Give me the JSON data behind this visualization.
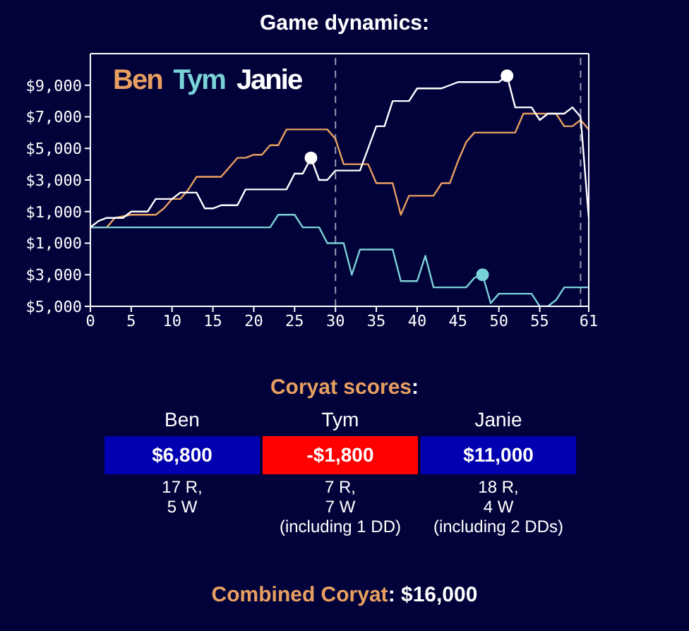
{
  "chart_data": {
    "type": "line",
    "title": "Game dynamics:",
    "xlim": [
      0,
      61
    ],
    "xticks": [
      0,
      5,
      10,
      15,
      20,
      25,
      30,
      35,
      40,
      45,
      50,
      55,
      61
    ],
    "ylim": [
      -5000,
      11000
    ],
    "yticks": [
      {
        "value": -5000,
        "label": "$5,000"
      },
      {
        "value": -3000,
        "label": "$3,000"
      },
      {
        "value": -1000,
        "label": "$1,000"
      },
      {
        "value": 1000,
        "label": "$1,000"
      },
      {
        "value": 3000,
        "label": "$3,000"
      },
      {
        "value": 5000,
        "label": "$5,000"
      },
      {
        "value": 7000,
        "label": "$7,000"
      },
      {
        "value": 9000,
        "label": "$9,000"
      }
    ],
    "legend": "top left",
    "marker": "none",
    "ref_lines": [
      {
        "axis": "x",
        "value": 30,
        "color": "#9a9ab0",
        "line_style": "dashed"
      },
      {
        "axis": "x",
        "value": 60,
        "color": "#9a9ab0",
        "line_style": "dashed"
      }
    ],
    "series": [
      {
        "name": "Ben",
        "color": "#e8a060",
        "x": [
          0,
          2,
          3,
          5,
          8,
          9,
          10,
          11,
          12,
          13,
          16,
          18,
          19,
          20,
          21,
          22,
          23,
          24,
          29,
          30,
          31,
          34,
          35,
          37,
          38,
          39,
          42,
          43,
          44,
          45,
          46,
          47,
          52,
          53,
          57,
          58,
          59,
          60,
          61
        ],
        "values": [
          0,
          0,
          600,
          800,
          800,
          1200,
          1800,
          1800,
          2400,
          3200,
          3200,
          4400,
          4400,
          4600,
          4600,
          5200,
          5200,
          6200,
          6200,
          5600,
          4000,
          4000,
          2800,
          2800,
          800,
          2000,
          2000,
          2800,
          2800,
          4200,
          5400,
          6000,
          6000,
          7200,
          7200,
          6400,
          6400,
          6800,
          6200
        ]
      },
      {
        "name": "Tym",
        "color": "#7ad3d8",
        "x": [
          0,
          22,
          23,
          25,
          26,
          28,
          29,
          31,
          32,
          33,
          37,
          38,
          40,
          41,
          42,
          46,
          47,
          48,
          49,
          50,
          54,
          55,
          56,
          57,
          58,
          61
        ],
        "values": [
          0,
          0,
          800,
          800,
          0,
          0,
          -1000,
          -1000,
          -3000,
          -1400,
          -1400,
          -3400,
          -3400,
          -1800,
          -3800,
          -3800,
          -3200,
          -3000,
          -4800,
          -4200,
          -4200,
          -5000,
          -5000,
          -4600,
          -3800,
          -3800
        ]
      },
      {
        "name": "Janie",
        "color": "#ffffff",
        "x": [
          0,
          1,
          2,
          4,
          5,
          7,
          8,
          10,
          11,
          13,
          14,
          15,
          16,
          18,
          19,
          24,
          25,
          26,
          27,
          28,
          29,
          30,
          33,
          35,
          36,
          37,
          39,
          40,
          43,
          44,
          45,
          50,
          51,
          52,
          54,
          55,
          56,
          58,
          59,
          60,
          61
        ],
        "values": [
          0,
          400,
          600,
          600,
          1000,
          1000,
          1800,
          1800,
          2200,
          2200,
          1200,
          1200,
          1400,
          1400,
          2400,
          2400,
          3400,
          3400,
          4400,
          3000,
          3000,
          3600,
          3600,
          6400,
          6400,
          8000,
          8000,
          8800,
          8800,
          9000,
          9200,
          9200,
          9600,
          7600,
          7600,
          6800,
          7200,
          7200,
          7600,
          7000,
          600
        ]
      },
      {
        "type": "scatter",
        "marker": "circle",
        "color": "#ffffff",
        "x": [
          27,
          51
        ],
        "values": [
          4400,
          9600
        ]
      },
      {
        "type": "scatter",
        "marker": "circle",
        "color": "#7ad3d8",
        "x": [
          48
        ],
        "values": [
          -3000
        ]
      }
    ],
    "annotations": [
      "Coryat scores:",
      "Ben",
      "Tym",
      "Janie",
      "$6,800",
      "-$1,800",
      "$11,000",
      "17 R,\n5 W",
      "7 R,\n7 W\n(including 1 DD)",
      "18 R,\n4 W\n(including 2 DDs)",
      "Combined Coryat: $16,000"
    ]
  }
}
